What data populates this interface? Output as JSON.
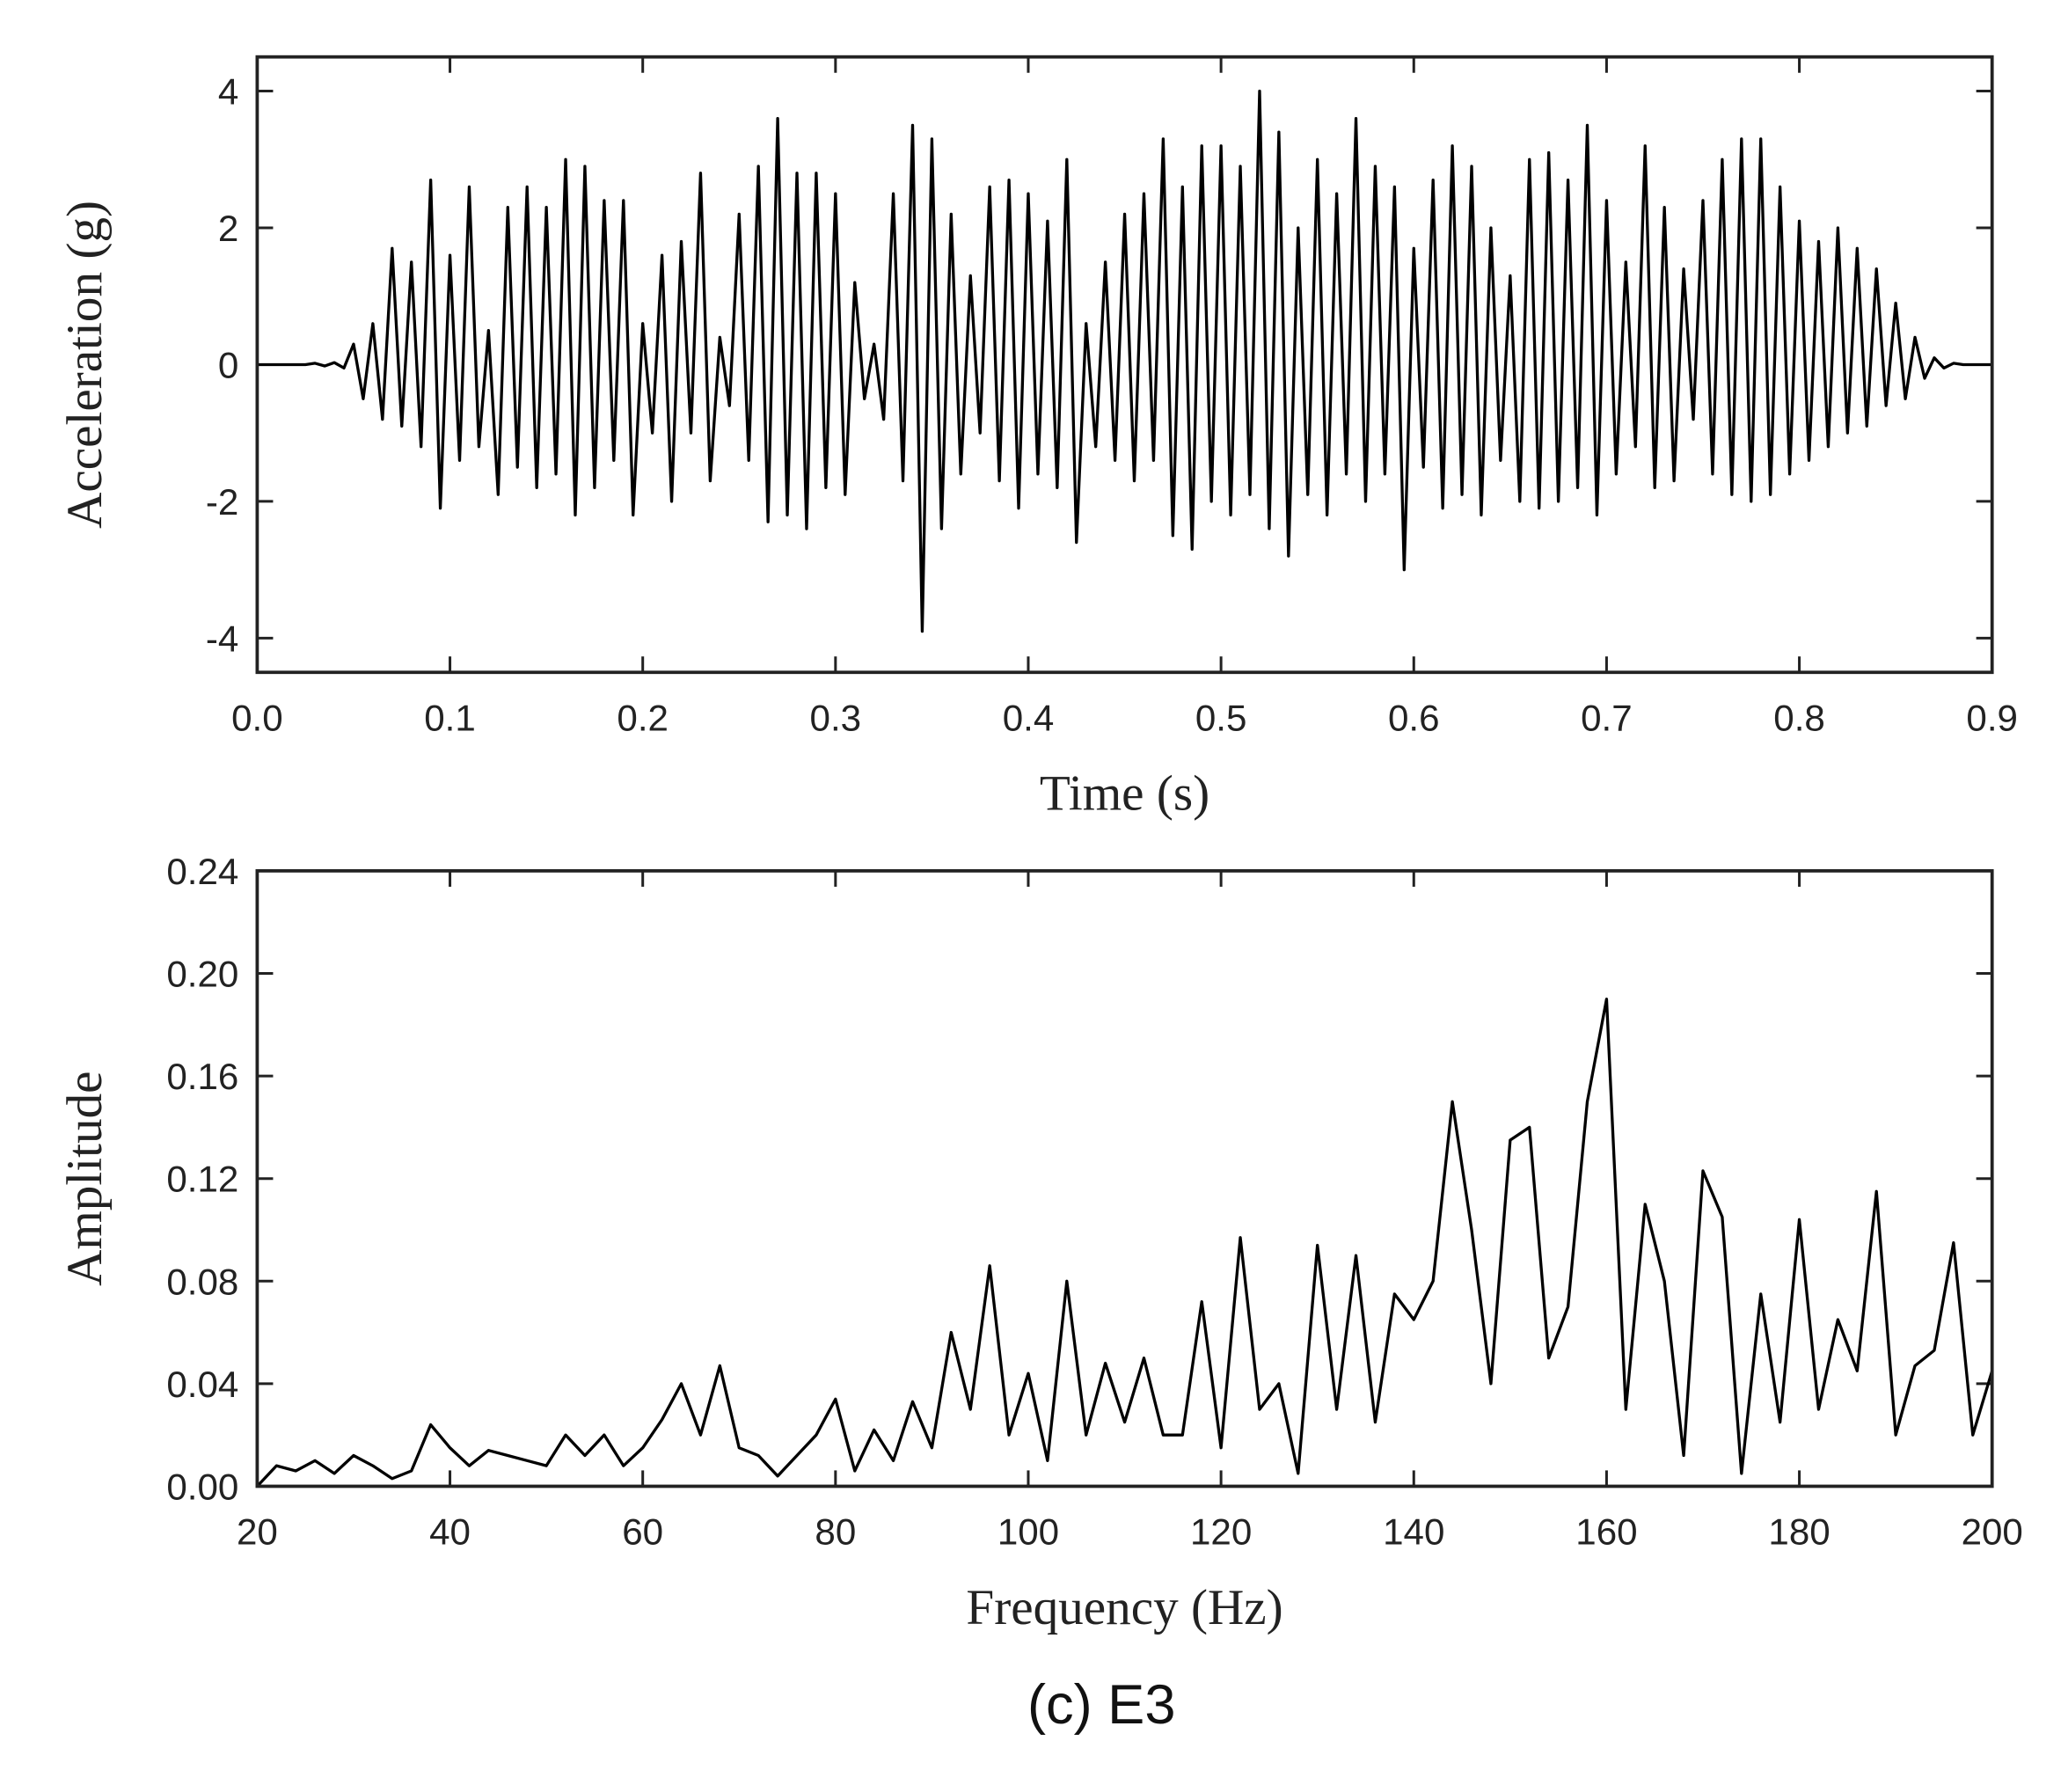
{
  "chart_data": [
    {
      "type": "line",
      "xlabel": "Time (s)",
      "ylabel": "Acceleration (g)",
      "color": "#000000",
      "xlim": [
        0,
        0.9
      ],
      "ylim": [
        -4.5,
        4.5
      ],
      "xticks": [
        {
          "value": 0,
          "label": "0.0"
        },
        0.1,
        0.2,
        0.3,
        0.4,
        0.5,
        0.6,
        0.7,
        0.8,
        0.9
      ],
      "yticks": [
        4,
        2,
        0,
        -2,
        -4
      ],
      "x": [
        0,
        0.005,
        0.01,
        0.015,
        0.02,
        0.025,
        0.03,
        0.035,
        0.04,
        0.045,
        0.05,
        0.055,
        0.06,
        0.065,
        0.07,
        0.075,
        0.08,
        0.085,
        0.09,
        0.095,
        0.1,
        0.105,
        0.11,
        0.115,
        0.12,
        0.125,
        0.13,
        0.135,
        0.14,
        0.145,
        0.15,
        0.155,
        0.16,
        0.165,
        0.17,
        0.175,
        0.18,
        0.185,
        0.19,
        0.195,
        0.2,
        0.205,
        0.21,
        0.215,
        0.22,
        0.225,
        0.23,
        0.235,
        0.24,
        0.245,
        0.25,
        0.255,
        0.26,
        0.265,
        0.27,
        0.275,
        0.28,
        0.285,
        0.29,
        0.295,
        0.3,
        0.305,
        0.31,
        0.315,
        0.32,
        0.325,
        0.33,
        0.335,
        0.34,
        0.345,
        0.35,
        0.355,
        0.36,
        0.365,
        0.37,
        0.375,
        0.38,
        0.385,
        0.39,
        0.395,
        0.4,
        0.405,
        0.41,
        0.415,
        0.42,
        0.425,
        0.43,
        0.435,
        0.44,
        0.445,
        0.45,
        0.455,
        0.46,
        0.465,
        0.47,
        0.475,
        0.48,
        0.485,
        0.49,
        0.495,
        0.5,
        0.505,
        0.51,
        0.515,
        0.52,
        0.525,
        0.53,
        0.535,
        0.54,
        0.545,
        0.55,
        0.555,
        0.56,
        0.565,
        0.57,
        0.575,
        0.58,
        0.585,
        0.59,
        0.595,
        0.6,
        0.605,
        0.61,
        0.615,
        0.62,
        0.625,
        0.63,
        0.635,
        0.64,
        0.645,
        0.65,
        0.655,
        0.66,
        0.665,
        0.67,
        0.675,
        0.68,
        0.685,
        0.69,
        0.695,
        0.7,
        0.705,
        0.71,
        0.715,
        0.72,
        0.725,
        0.73,
        0.735,
        0.74,
        0.745,
        0.75,
        0.755,
        0.76,
        0.765,
        0.77,
        0.775,
        0.78,
        0.785,
        0.79,
        0.795,
        0.8,
        0.805,
        0.81,
        0.815,
        0.82,
        0.825,
        0.83,
        0.835,
        0.84,
        0.845,
        0.85,
        0.855,
        0.86,
        0.865,
        0.87,
        0.875,
        0.88,
        0.885,
        0.89,
        0.895,
        0.9
      ],
      "values": [
        0,
        0,
        0,
        0,
        0,
        0,
        0.02,
        -0.02,
        0.03,
        -0.05,
        0.3,
        -0.5,
        0.6,
        -0.8,
        1.7,
        -0.9,
        1.5,
        -1.2,
        2.7,
        -2.1,
        1.6,
        -1.4,
        2.6,
        -1.2,
        0.5,
        -1.9,
        2.3,
        -1.5,
        2.6,
        -1.8,
        2.3,
        -1.6,
        3.0,
        -2.2,
        2.9,
        -1.8,
        2.4,
        -1.4,
        2.4,
        -2.2,
        0.6,
        -1.0,
        1.6,
        -2.0,
        1.8,
        -1.0,
        2.8,
        -1.7,
        0.4,
        -0.6,
        2.2,
        -1.4,
        2.9,
        -2.3,
        3.6,
        -2.2,
        2.8,
        -2.4,
        2.8,
        -1.8,
        2.5,
        -1.9,
        1.2,
        -0.5,
        0.3,
        -0.8,
        2.5,
        -1.7,
        3.5,
        -3.9,
        3.3,
        -2.4,
        2.2,
        -1.6,
        1.3,
        -1.0,
        2.6,
        -1.7,
        2.7,
        -2.1,
        2.5,
        -1.6,
        2.1,
        -1.8,
        3.0,
        -2.6,
        0.6,
        -1.2,
        1.5,
        -1.4,
        2.2,
        -1.7,
        2.5,
        -1.4,
        3.3,
        -2.5,
        2.6,
        -2.7,
        3.2,
        -2.0,
        3.2,
        -2.2,
        2.9,
        -1.9,
        4.0,
        -2.4,
        3.4,
        -2.8,
        2.0,
        -1.9,
        3.0,
        -2.2,
        2.5,
        -1.6,
        3.6,
        -2.0,
        2.9,
        -1.6,
        2.6,
        -3.0,
        1.7,
        -1.5,
        2.7,
        -2.1,
        3.2,
        -1.9,
        2.9,
        -2.2,
        2.0,
        -1.4,
        1.3,
        -2.0,
        3.0,
        -2.1,
        3.1,
        -2.0,
        2.7,
        -1.8,
        3.5,
        -2.2,
        2.4,
        -1.6,
        1.5,
        -1.2,
        3.2,
        -1.8,
        2.3,
        -1.7,
        1.4,
        -0.8,
        2.4,
        -1.6,
        3.0,
        -1.9,
        3.3,
        -2.0,
        3.3,
        -1.9,
        2.6,
        -1.6,
        2.1,
        -1.4,
        1.8,
        -1.2,
        2.0,
        -1.0,
        1.7,
        -0.9,
        1.4,
        -0.6,
        0.9,
        -0.5,
        0.4,
        -0.2,
        0.1,
        -0.05,
        0.02,
        0,
        0,
        0,
        0
      ]
    },
    {
      "type": "line",
      "xlabel": "Frequency (Hz)",
      "ylabel": "Amplitude",
      "color": "#000000",
      "xlim": [
        20,
        200
      ],
      "ylim": [
        0,
        0.24
      ],
      "xticks": [
        20,
        40,
        60,
        80,
        100,
        120,
        140,
        160,
        180,
        200
      ],
      "yticks": [
        {
          "value": 0,
          "label": "0.00"
        },
        {
          "value": 0.04,
          "label": "0.04"
        },
        {
          "value": 0.08,
          "label": "0.08"
        },
        {
          "value": 0.12,
          "label": "0.12"
        },
        {
          "value": 0.16,
          "label": "0.16"
        },
        {
          "value": 0.2,
          "label": "0.20"
        },
        {
          "value": 0.24,
          "label": "0.24"
        }
      ],
      "x": [
        20,
        22,
        24,
        26,
        28,
        30,
        32,
        34,
        36,
        38,
        40,
        42,
        44,
        46,
        48,
        50,
        52,
        54,
        56,
        58,
        60,
        62,
        64,
        66,
        68,
        70,
        72,
        74,
        76,
        78,
        80,
        82,
        84,
        86,
        88,
        90,
        92,
        94,
        96,
        98,
        100,
        102,
        104,
        106,
        108,
        110,
        112,
        114,
        116,
        118,
        120,
        122,
        124,
        126,
        128,
        130,
        132,
        134,
        136,
        138,
        140,
        142,
        144,
        146,
        148,
        150,
        152,
        154,
        156,
        158,
        160,
        162,
        164,
        166,
        168,
        170,
        172,
        174,
        176,
        178,
        180,
        182,
        184,
        186,
        188,
        190,
        192,
        194,
        196,
        198,
        200
      ],
      "values": [
        0.0,
        0.008,
        0.006,
        0.01,
        0.005,
        0.012,
        0.008,
        0.003,
        0.006,
        0.024,
        0.015,
        0.008,
        0.014,
        0.012,
        0.01,
        0.008,
        0.02,
        0.012,
        0.02,
        0.008,
        0.015,
        0.026,
        0.04,
        0.02,
        0.047,
        0.015,
        0.012,
        0.004,
        0.012,
        0.02,
        0.034,
        0.006,
        0.022,
        0.01,
        0.033,
        0.015,
        0.06,
        0.03,
        0.086,
        0.02,
        0.044,
        0.01,
        0.08,
        0.02,
        0.048,
        0.025,
        0.05,
        0.02,
        0.02,
        0.072,
        0.015,
        0.097,
        0.03,
        0.04,
        0.005,
        0.094,
        0.03,
        0.09,
        0.025,
        0.075,
        0.065,
        0.08,
        0.15,
        0.1,
        0.04,
        0.135,
        0.14,
        0.05,
        0.07,
        0.15,
        0.19,
        0.03,
        0.11,
        0.08,
        0.012,
        0.123,
        0.105,
        0.005,
        0.075,
        0.025,
        0.104,
        0.03,
        0.065,
        0.045,
        0.115,
        0.02,
        0.047,
        0.053,
        0.095,
        0.02,
        0.045
      ]
    }
  ],
  "caption": "(c) E3"
}
